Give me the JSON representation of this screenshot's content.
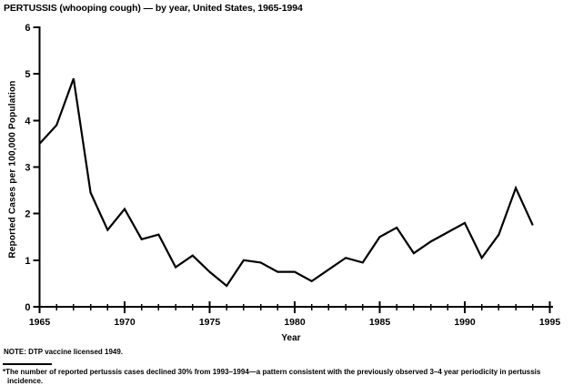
{
  "title": "PERTUSSIS (whooping cough) — by year, United States, 1965-1994",
  "chart_data": {
    "type": "line",
    "title": "PERTUSSIS (whooping cough) — by year, United States, 1965-1994",
    "xlabel": "Year",
    "ylabel": "Reported Cases per 100,000 Population",
    "xlim": [
      1965,
      1995
    ],
    "ylim": [
      0,
      6
    ],
    "grid": false,
    "legend": "none",
    "line_color": "#000000",
    "x_major_ticks": [
      1965,
      1970,
      1975,
      1980,
      1985,
      1990,
      1995
    ],
    "x_minor_tick_interval": 1,
    "y_ticks": [
      0,
      1,
      2,
      3,
      4,
      5,
      6
    ],
    "x": [
      1965,
      1966,
      1967,
      1968,
      1969,
      1970,
      1971,
      1972,
      1973,
      1974,
      1975,
      1976,
      1977,
      1978,
      1979,
      1980,
      1981,
      1982,
      1983,
      1984,
      1985,
      1986,
      1987,
      1988,
      1989,
      1990,
      1991,
      1992,
      1993,
      1994
    ],
    "values": [
      3.5,
      3.9,
      4.9,
      2.45,
      1.65,
      2.1,
      1.45,
      1.55,
      0.85,
      1.1,
      0.75,
      0.45,
      1.0,
      0.95,
      0.75,
      0.75,
      0.55,
      0.8,
      1.05,
      0.95,
      1.5,
      1.7,
      1.15,
      1.4,
      1.6,
      1.8,
      1.05,
      1.55,
      2.55,
      1.75
    ]
  },
  "notes": {
    "note": "NOTE: DTP vaccine licensed 1949.",
    "footnote": "*The number of reported pertussis cases declined 30% from 1993–1994—a pattern consistent with the previously observed 3–4 year periodicity in pertussis incidence."
  }
}
